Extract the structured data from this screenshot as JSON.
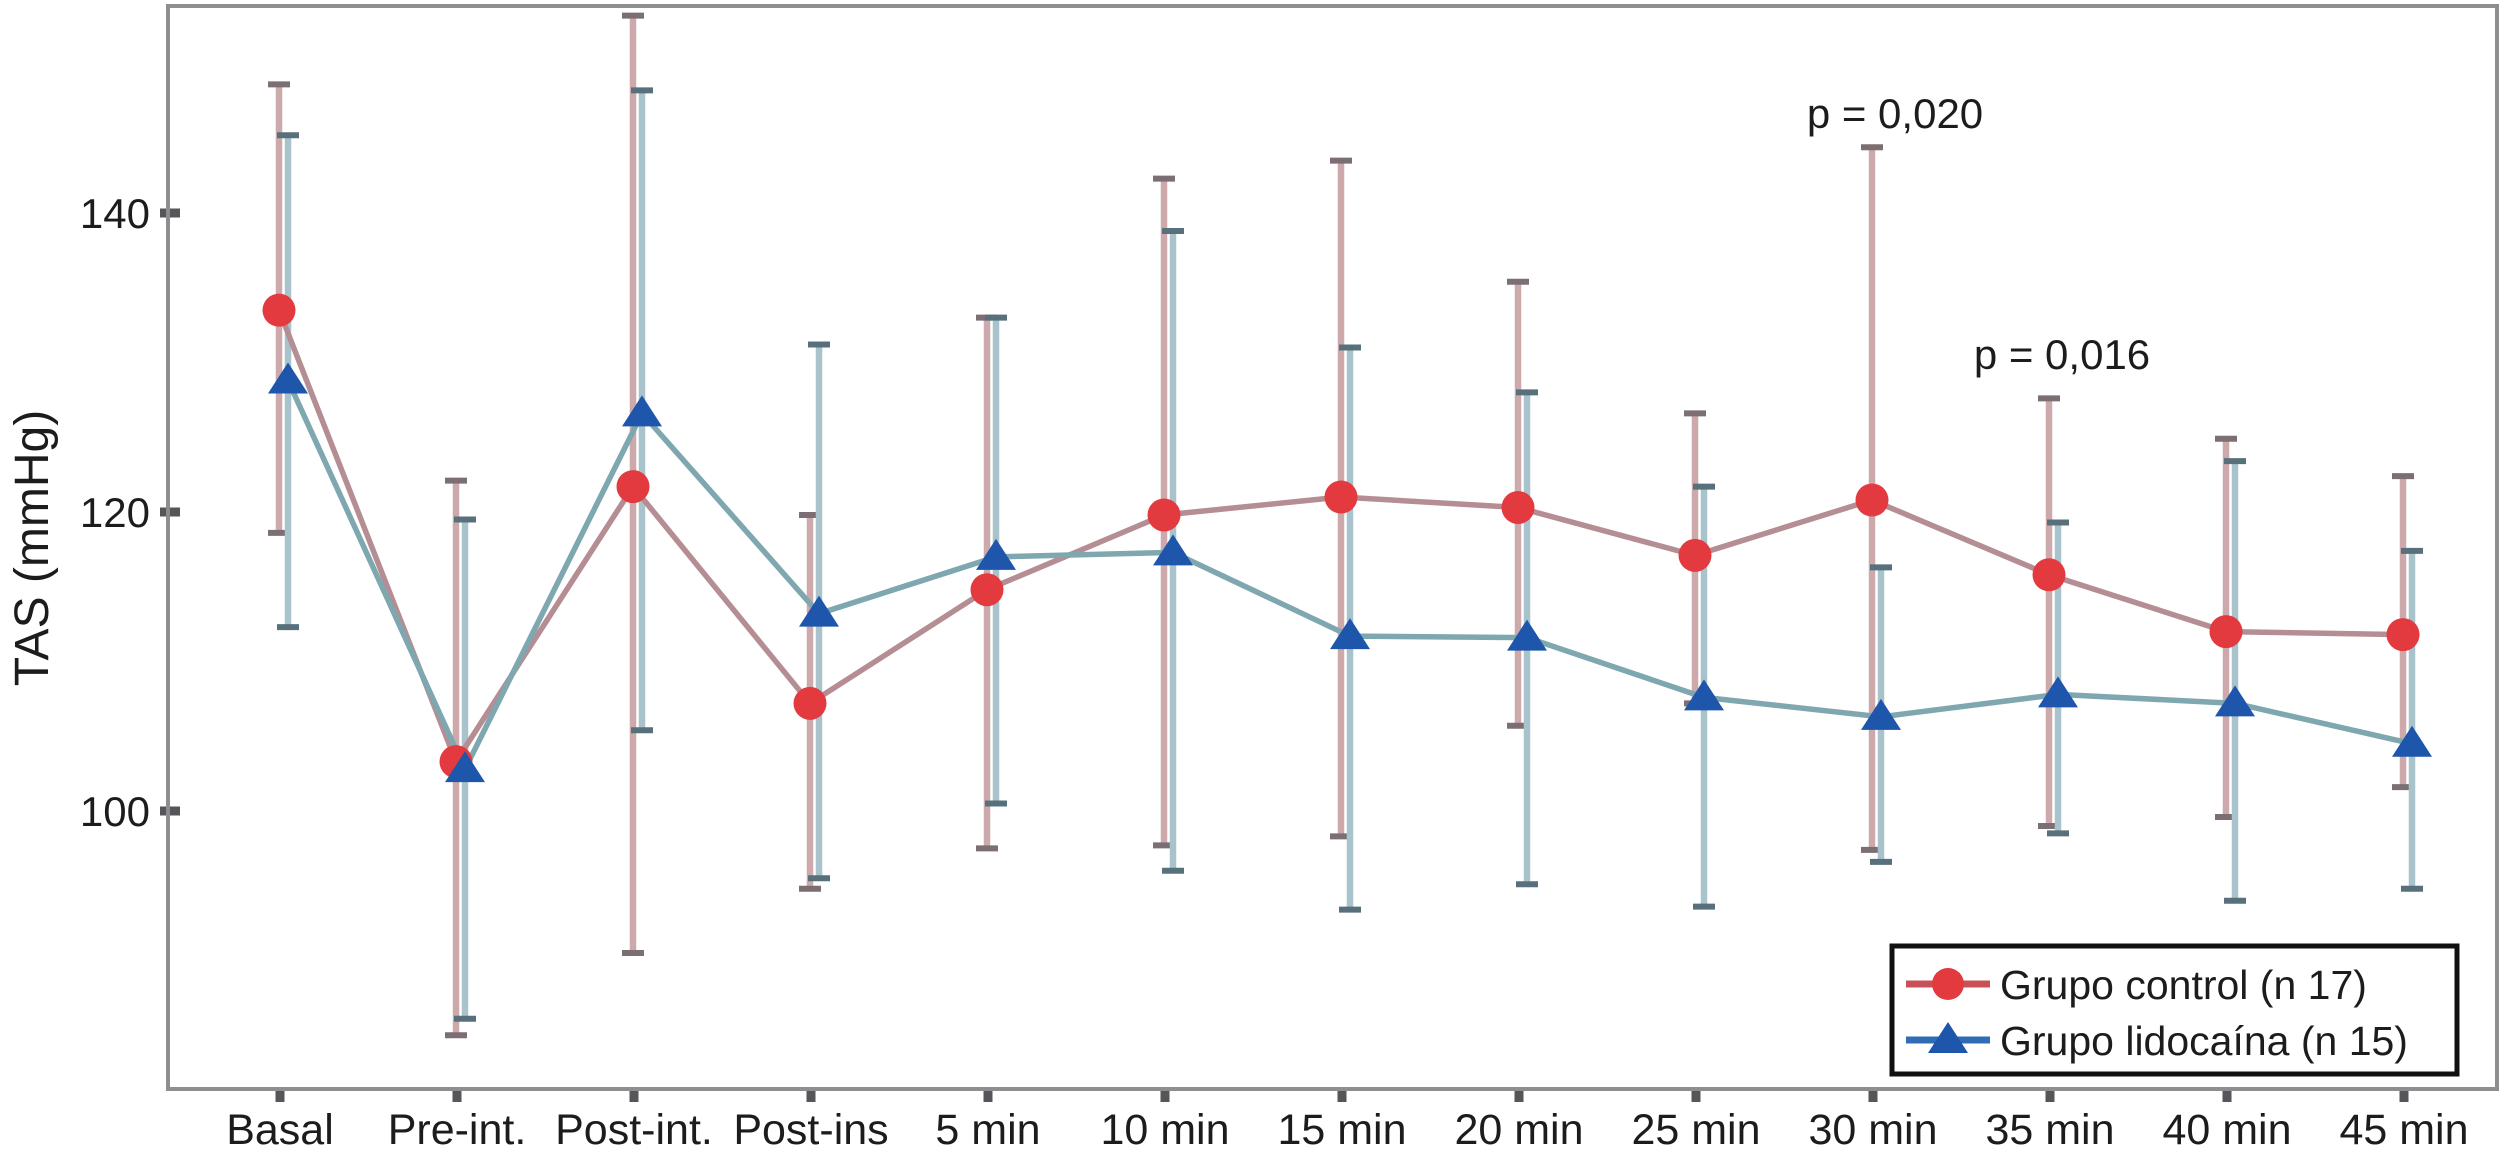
{
  "chart_data": {
    "type": "line",
    "title": "",
    "xlabel": "",
    "ylabel": "TAS (mmHg)",
    "yticks": [
      100,
      120,
      140
    ],
    "ylim": [
      81.5,
      153.8
    ],
    "grid": false,
    "legend_position": "bottom-right",
    "categories": [
      "Basal",
      "Pre-int.",
      "Post-int.",
      "Post-ins",
      "5 min",
      "10 min",
      "15 min",
      "20 min",
      "25 min",
      "30 min",
      "35 min",
      "40 min",
      "45 min"
    ],
    "series": [
      {
        "name": "Grupo control (n 17)",
        "marker": "circle",
        "color": "#e23a3e",
        "legend_line_color": "#c75156",
        "line_color": "#b58e93",
        "bar_color": "#cda9ab",
        "cap_color": "#7c6f74",
        "values": [
          133.5,
          103.3,
          121.7,
          107.2,
          114.8,
          119.8,
          121.0,
          120.3,
          117.1,
          120.8,
          115.8,
          112.0,
          111.8
        ],
        "upper": [
          148.6,
          122.1,
          153.2,
          119.8,
          133.0,
          142.3,
          143.5,
          135.4,
          126.6,
          144.4,
          127.6,
          124.9,
          122.4
        ],
        "lower": [
          118.6,
          85.0,
          90.5,
          94.8,
          97.5,
          97.7,
          98.3,
          105.7,
          107.2,
          97.4,
          99.0,
          99.6,
          101.6
        ]
      },
      {
        "name": "Grupo lidocaína (n 15)",
        "marker": "triangle",
        "color": "#1d56aa",
        "legend_line_color": "#2f6cb5",
        "line_color": "#7ea7b0",
        "bar_color": "#a8c3cc",
        "cap_color": "#57707c",
        "values": [
          128.8,
          102.8,
          126.6,
          113.2,
          117.0,
          117.3,
          111.7,
          111.6,
          107.6,
          106.3,
          107.8,
          107.2,
          104.5
        ],
        "upper": [
          145.2,
          119.5,
          148.2,
          131.2,
          133.0,
          138.8,
          131.0,
          128.0,
          121.7,
          116.3,
          119.3,
          123.4,
          117.4
        ],
        "lower": [
          112.3,
          86.1,
          105.4,
          95.5,
          100.5,
          96.0,
          93.4,
          95.1,
          93.6,
          96.6,
          98.5,
          94.0,
          94.8
        ]
      }
    ],
    "annotations": [
      {
        "text": "p = 0,020",
        "above_category": "30 min"
      },
      {
        "text": "p = 0,016",
        "above_category": "35 min"
      }
    ]
  }
}
